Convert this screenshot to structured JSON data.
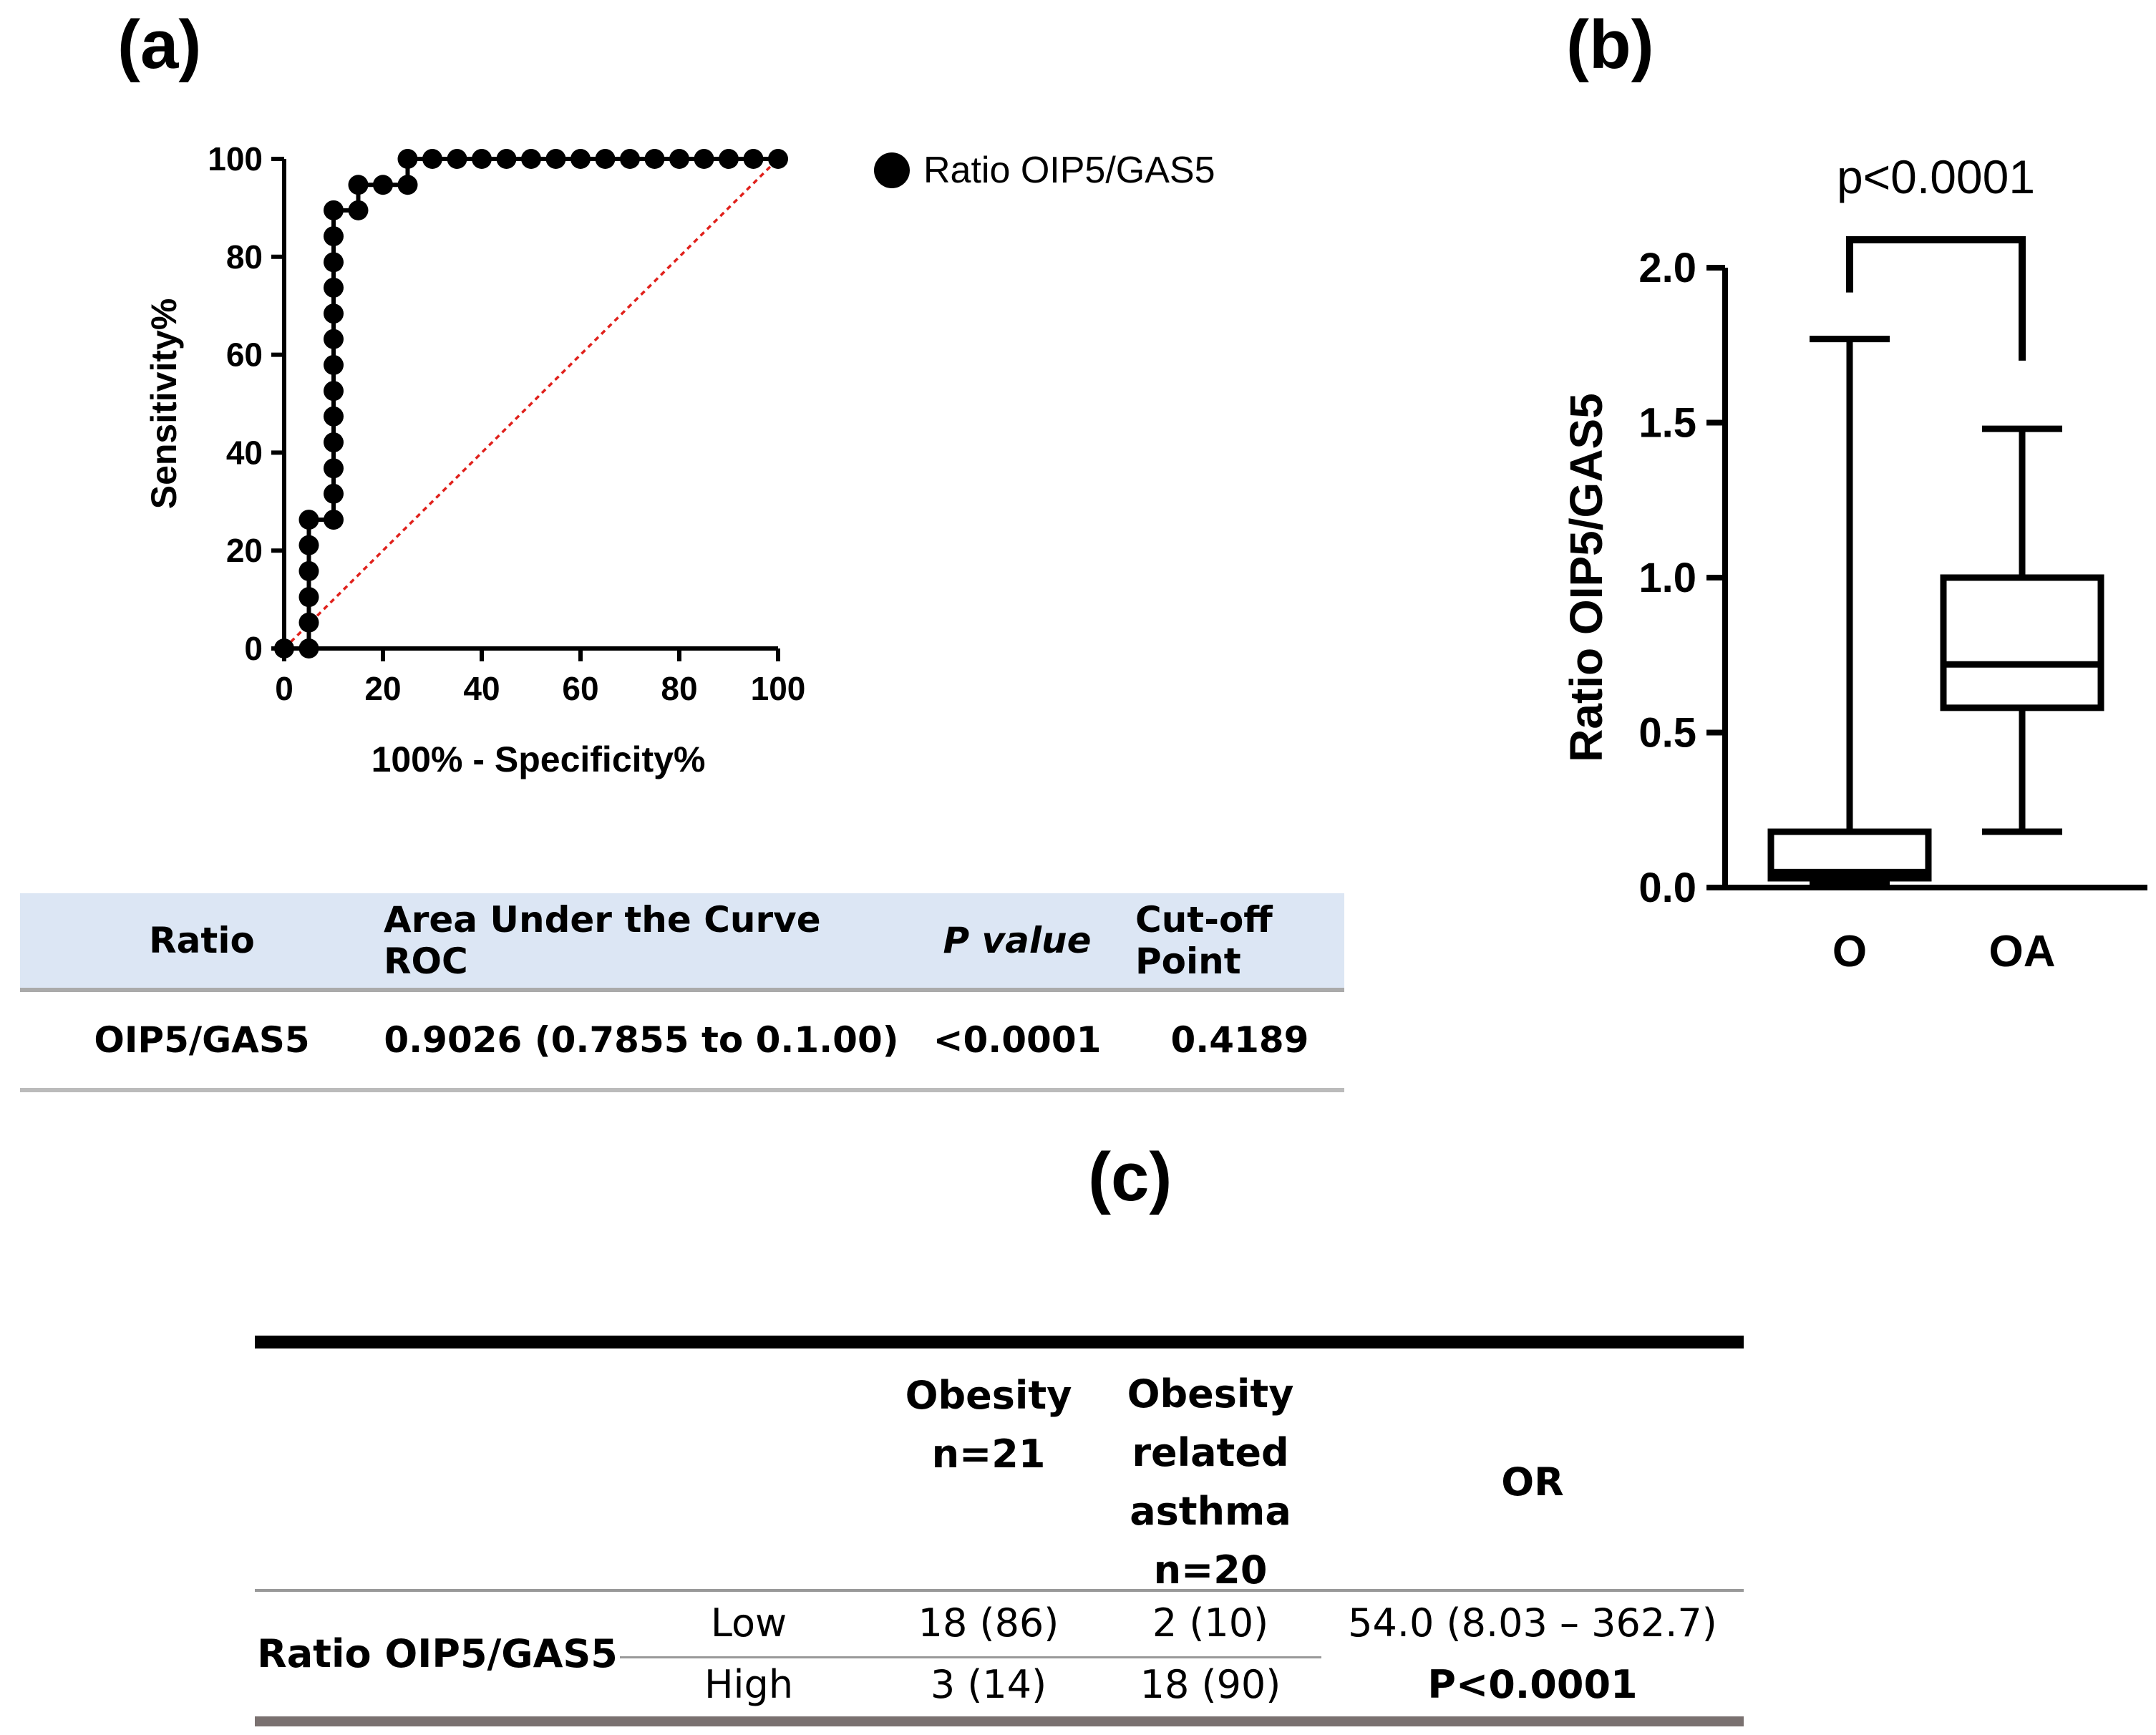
{
  "panels": {
    "a": "(a)",
    "b": "(b)",
    "c": "(c)"
  },
  "colors": {
    "text": "#000000",
    "reference": "#e0201b",
    "table_header_bg": "#dce6f4",
    "rule": "#aaaaaa",
    "thick_rule": "#000000",
    "bottom_rule": "#7a7170"
  },
  "chart_data": [
    {
      "type": "scatter",
      "subtype": "roc-curve",
      "title": "",
      "xlabel": "100% - Specificity%",
      "ylabel": "Sensitivity%",
      "xlim": [
        0,
        100
      ],
      "ylim": [
        0,
        100
      ],
      "xticks": [
        "0",
        "20",
        "40",
        "60",
        "80",
        "100"
      ],
      "yticks": [
        "0",
        "20",
        "40",
        "60",
        "80",
        "100"
      ],
      "legend": "Ratio OIP5/GAS5",
      "legend_position": "top-right",
      "series": [
        {
          "name": "Ratio OIP5/GAS5",
          "x": [
            0,
            5,
            5,
            5,
            5,
            5,
            5,
            10,
            10,
            10,
            10,
            10,
            10,
            10,
            10,
            10,
            10,
            10,
            10,
            10,
            15,
            15,
            20,
            25,
            25,
            30,
            35,
            40,
            45,
            50,
            55,
            60,
            65,
            70,
            75,
            80,
            85,
            90,
            95,
            100
          ],
          "y": [
            0,
            0,
            5.3,
            10.5,
            15.8,
            21.1,
            26.3,
            26.3,
            31.6,
            36.8,
            42.1,
            47.4,
            52.6,
            57.9,
            63.2,
            68.4,
            73.7,
            78.9,
            84.2,
            89.5,
            89.5,
            94.7,
            94.7,
            94.7,
            100,
            100,
            100,
            100,
            100,
            100,
            100,
            100,
            100,
            100,
            100,
            100,
            100,
            100,
            100,
            100
          ]
        }
      ],
      "reference_line": {
        "x": [
          0,
          100
        ],
        "y": [
          0,
          100
        ],
        "style": "dotted"
      }
    },
    {
      "type": "box",
      "title": "",
      "xlabel": "",
      "ylabel": "Ratio OIP5/GAS5",
      "ylim": [
        0,
        2.0
      ],
      "yticks": [
        "0.0",
        "0.5",
        "1.0",
        "1.5",
        "2.0"
      ],
      "categories": [
        "O",
        "OA"
      ],
      "boxes": [
        {
          "min": 0.01,
          "q1": 0.03,
          "median": 0.05,
          "q3": 0.18,
          "max": 1.77
        },
        {
          "min": 0.18,
          "q1": 0.58,
          "median": 0.72,
          "q3": 1.0,
          "max": 1.48
        }
      ],
      "annotation": "p<0.0001",
      "bracket": {
        "y": 2.09,
        "left_end": 1.92,
        "right_end": 1.7
      }
    }
  ],
  "tableA": {
    "headers": [
      "Ratio",
      "Area Under the Curve ROC",
      "P value",
      "Cut-off Point"
    ],
    "row": [
      "OIP5/GAS5",
      "0.9026 (0.7855 to 0.1.00)",
      "<0.0001",
      "0.4189"
    ]
  },
  "tableC": {
    "headers": [
      "Obesity n=21",
      "Obesity related asthma n=20",
      "OR"
    ],
    "row_label": "Ratio OIP5/GAS5",
    "rows": [
      {
        "level": "Low",
        "obesity": "18 (86)",
        "asthma": "2 (10)"
      },
      {
        "level": "High",
        "obesity": "3 (14)",
        "asthma": "18 (90)"
      }
    ],
    "or_value": "54.0 (8.03 – 362.7)",
    "p_value": "P<0.0001"
  }
}
